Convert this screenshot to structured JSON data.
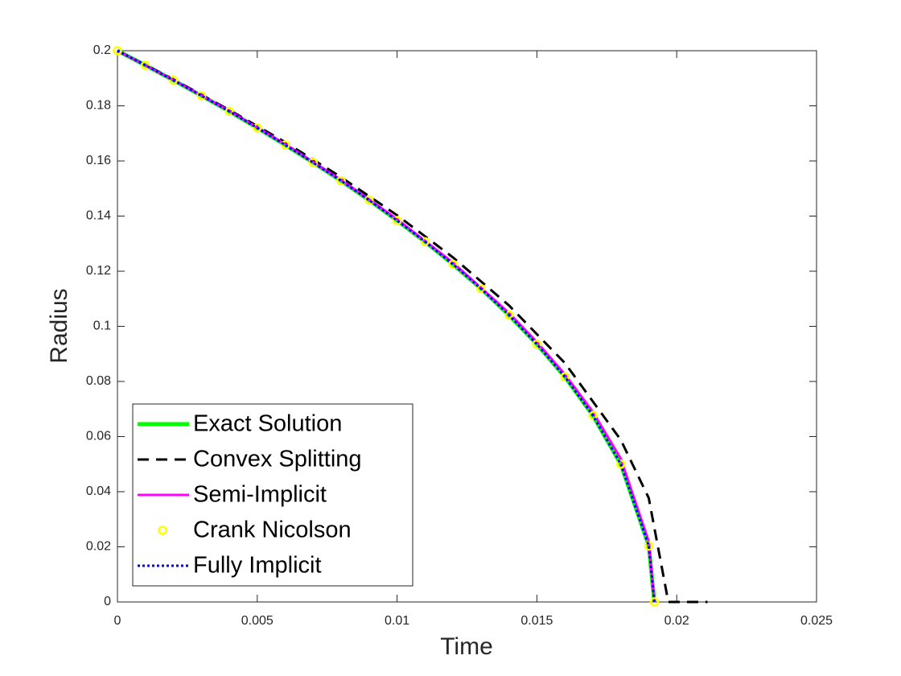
{
  "chart_data": {
    "type": "line",
    "xlabel": "Time",
    "ylabel": "Radius",
    "xlim": [
      0,
      0.025
    ],
    "ylim": [
      0,
      0.2
    ],
    "xticks": [
      0,
      0.005,
      0.01,
      0.015,
      0.02,
      0.025
    ],
    "yticks": [
      0,
      0.02,
      0.04,
      0.06,
      0.08,
      0.1,
      0.12,
      0.14,
      0.16,
      0.18,
      0.2
    ],
    "grid": false,
    "legend": "southwest",
    "series": [
      {
        "name": "Exact Solution",
        "color": "#00ff00",
        "style": "solid",
        "x": [
          0,
          0.001,
          0.002,
          0.003,
          0.004,
          0.005,
          0.006,
          0.007,
          0.008,
          0.009,
          0.01,
          0.011,
          0.012,
          0.013,
          0.014,
          0.015,
          0.016,
          0.017,
          0.018,
          0.019,
          0.0192
        ],
        "values": [
          0.2,
          0.1947,
          0.1893,
          0.1837,
          0.178,
          0.172,
          0.1658,
          0.1594,
          0.1528,
          0.1458,
          0.1384,
          0.1307,
          0.1225,
          0.1137,
          0.1041,
          0.0935,
          0.0817,
          0.0677,
          0.05,
          0.0204,
          0
        ]
      },
      {
        "name": "Convex Splitting",
        "color": "#000000",
        "style": "dashed",
        "x": [
          0,
          0.002,
          0.004,
          0.006,
          0.008,
          0.01,
          0.012,
          0.014,
          0.016,
          0.018,
          0.019,
          0.0197,
          0.0205,
          0.0211
        ],
        "values": [
          0.2,
          0.1896,
          0.1785,
          0.1668,
          0.1541,
          0.1403,
          0.125,
          0.1076,
          0.0867,
          0.0588,
          0.0377,
          0,
          0,
          0
        ]
      },
      {
        "name": "Semi-Implicit",
        "color": "#ff00ff",
        "style": "solid",
        "x": [
          0,
          0.002,
          0.004,
          0.006,
          0.008,
          0.01,
          0.012,
          0.014,
          0.015,
          0.016,
          0.017,
          0.018,
          0.019,
          0.0192
        ],
        "values": [
          0.2,
          0.1894,
          0.1782,
          0.1661,
          0.1531,
          0.1389,
          0.1231,
          0.1049,
          0.0943,
          0.0826,
          0.069,
          0.052,
          0.022,
          0
        ]
      },
      {
        "name": "Crank Nicolson",
        "color": "#ffff00",
        "style": "marker",
        "x": [
          0,
          0.001,
          0.002,
          0.003,
          0.004,
          0.005,
          0.006,
          0.007,
          0.008,
          0.009,
          0.01,
          0.011,
          0.012,
          0.013,
          0.014,
          0.015,
          0.016,
          0.017,
          0.018,
          0.019,
          0.0192
        ],
        "values": [
          0.2,
          0.1947,
          0.1893,
          0.1837,
          0.178,
          0.172,
          0.1658,
          0.1594,
          0.1528,
          0.1458,
          0.1384,
          0.1307,
          0.1225,
          0.1137,
          0.1041,
          0.0935,
          0.0817,
          0.0677,
          0.05,
          0.0204,
          0
        ]
      },
      {
        "name": "Fully Implicit",
        "color": "#0000ff",
        "style": "dotted",
        "x": [
          0,
          0.001,
          0.002,
          0.003,
          0.004,
          0.005,
          0.006,
          0.007,
          0.008,
          0.009,
          0.01,
          0.011,
          0.012,
          0.013,
          0.014,
          0.015,
          0.016,
          0.017,
          0.018,
          0.019,
          0.0192
        ],
        "values": [
          0.2,
          0.1947,
          0.1893,
          0.1837,
          0.178,
          0.172,
          0.1658,
          0.1594,
          0.1528,
          0.1458,
          0.1384,
          0.1307,
          0.1225,
          0.1137,
          0.1041,
          0.0935,
          0.0817,
          0.0677,
          0.05,
          0.0204,
          0
        ]
      }
    ]
  }
}
